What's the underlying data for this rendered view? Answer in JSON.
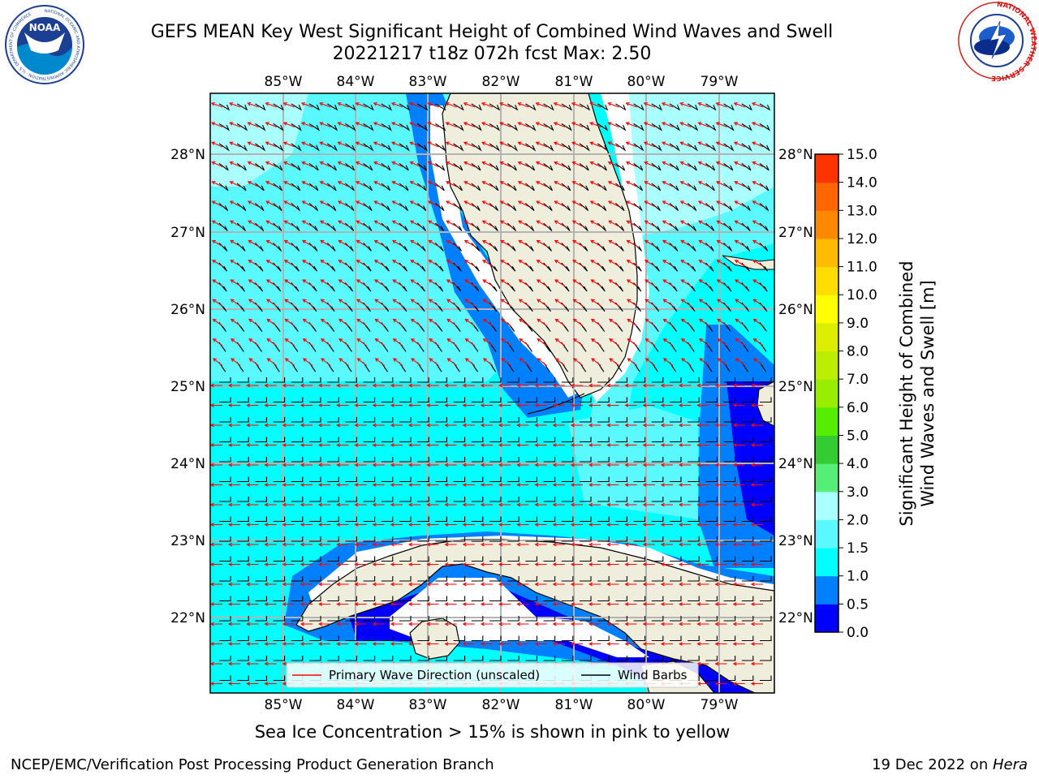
{
  "title": {
    "line1": "GEFS MEAN Key West Significant Height of Combined Wind Waves and Swell",
    "line2": "20221217 t18z 072h fcst   Max: 2.50"
  },
  "logos": {
    "noaa_text": "NOAA",
    "noaa_ring_text": "NATIONAL OCEANIC AND ATMOSPHERIC ADMINISTRATION · U.S. DEPARTMENT OF COMMERCE",
    "nws_ring_text": "NATIONAL WEATHER SERVICE"
  },
  "map": {
    "lon_labels": [
      "85°W",
      "84°W",
      "83°W",
      "82°W",
      "81°W",
      "80°W",
      "79°W"
    ],
    "lon_values": [
      -85,
      -84,
      -83,
      -82,
      -81,
      -80,
      -79
    ],
    "lat_labels": [
      "22°N",
      "23°N",
      "24°N",
      "25°N",
      "26°N",
      "27°N",
      "28°N"
    ],
    "lat_values": [
      22,
      23,
      24,
      25,
      26,
      27,
      28
    ],
    "extent": {
      "lon_min": -86.0,
      "lon_max": -78.3,
      "lat_min": 21.1,
      "lat_max": 28.75
    },
    "colors": {
      "land": "#efeedd",
      "ocean_high": "#00ffff",
      "ocean_mid": "#5af8ff",
      "shallow": "#0080ff",
      "deep": "#0000ff",
      "wave_arrow": "#ff0000",
      "barb": "#000000"
    },
    "legend": {
      "wave": "Primary Wave Direction (unscaled)",
      "barb": "Wind Barbs"
    }
  },
  "colorbar": {
    "label_line1": "Significant Height of Combined",
    "label_line2": "Wind Waves and Swell [m]",
    "ticks": [
      "0.0",
      "0.5",
      "1.0",
      "1.5",
      "2.0",
      "3.0",
      "4.0",
      "5.0",
      "6.0",
      "7.0",
      "8.0",
      "9.0",
      "10.0",
      "11.0",
      "12.0",
      "13.0",
      "14.0",
      "15.0"
    ],
    "colors": [
      "#0000ff",
      "#0080ff",
      "#00ffff",
      "#5af8ff",
      "#aaffff",
      "#55ee77",
      "#33cc33",
      "#55ee00",
      "#99ee00",
      "#bbee00",
      "#ddee00",
      "#ffff00",
      "#ffdd00",
      "#ffbb00",
      "#ff8800",
      "#ff6600",
      "#ff3300",
      "#ff0000"
    ]
  },
  "subtitle": "Sea Ice Concentration > 15% is shown in pink to yellow",
  "footer": {
    "left": "NCEP/EMC/Verification Post Processing Product Generation Branch",
    "right_date": "19 Dec 2022 on ",
    "right_host": "Hera"
  }
}
